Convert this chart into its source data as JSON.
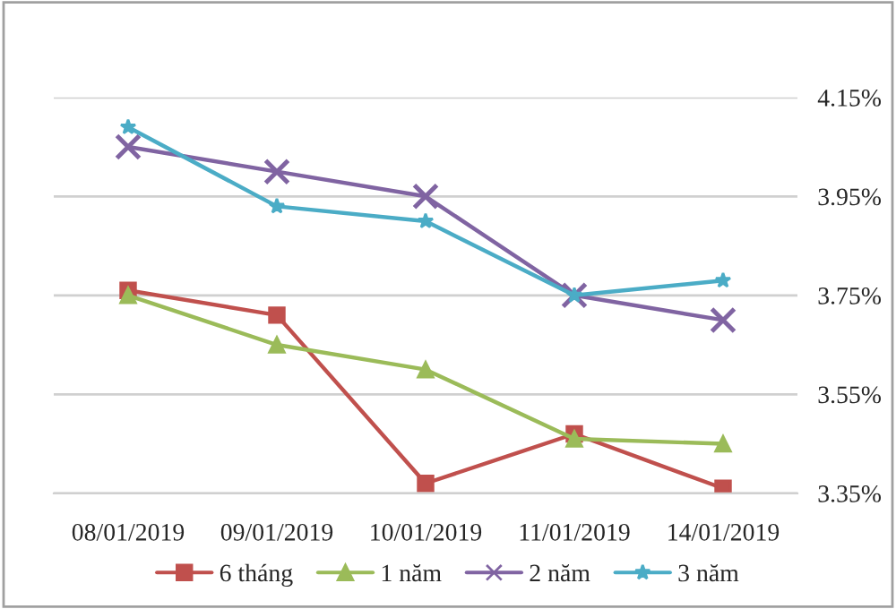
{
  "chart_data": {
    "type": "line",
    "categories": [
      "08/01/2019",
      "09/01/2019",
      "10/01/2019",
      "11/01/2019",
      "14/01/2019"
    ],
    "series": [
      {
        "name": "6 tháng",
        "color": "#c0504d",
        "marker": "square",
        "values": [
          3.76,
          3.71,
          3.37,
          3.47,
          3.36
        ]
      },
      {
        "name": "1 năm",
        "color": "#9bbb59",
        "marker": "triangle",
        "values": [
          3.75,
          3.65,
          3.6,
          3.46,
          3.45
        ]
      },
      {
        "name": "2 năm",
        "color": "#8064a2",
        "marker": "cross",
        "values": [
          4.05,
          4.0,
          3.95,
          3.75,
          3.7
        ]
      },
      {
        "name": "3 năm",
        "color": "#4bacc6",
        "marker": "star",
        "values": [
          4.09,
          3.93,
          3.9,
          3.75,
          3.78
        ]
      }
    ],
    "ylim": [
      3.35,
      4.15
    ],
    "yticks": [
      {
        "value": 3.35,
        "label": "3.35%"
      },
      {
        "value": 3.55,
        "label": "3.55%"
      },
      {
        "value": 3.75,
        "label": "3.75%"
      },
      {
        "value": 3.95,
        "label": "3.95%"
      },
      {
        "value": 4.15,
        "label": "4.15%"
      }
    ],
    "grid": "y",
    "legend": "bottom",
    "line_style": "solid"
  }
}
